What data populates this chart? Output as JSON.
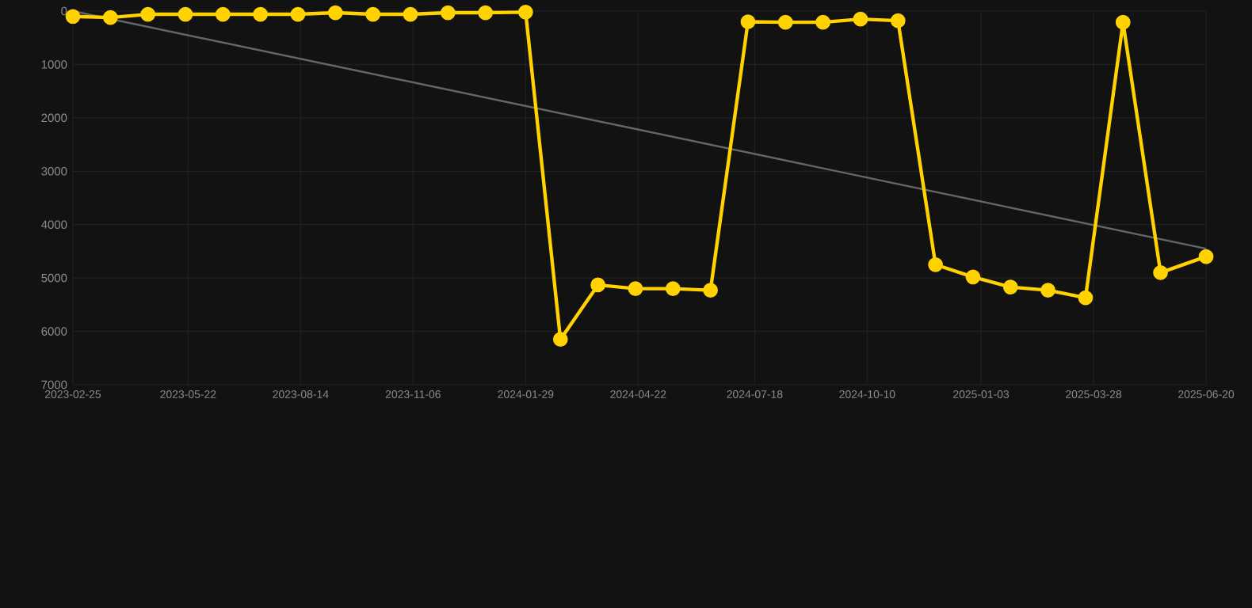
{
  "chart_data": {
    "type": "line",
    "x": [
      "2023-02-25",
      "2023-03-25",
      "2023-04-22",
      "2023-05-20",
      "2023-06-17",
      "2023-07-15",
      "2023-08-12",
      "2023-09-09",
      "2023-10-07",
      "2023-11-04",
      "2023-12-02",
      "2023-12-30",
      "2024-01-29",
      "2024-02-24",
      "2024-03-23",
      "2024-04-20",
      "2024-05-18",
      "2024-06-15",
      "2024-07-13",
      "2024-08-10",
      "2024-09-07",
      "2024-10-05",
      "2024-11-02",
      "2024-11-30",
      "2024-12-28",
      "2025-01-25",
      "2025-02-22",
      "2025-03-22",
      "2025-04-19",
      "2025-05-17",
      "2025-06-20"
    ],
    "series": [
      {
        "color": "#ffd200",
        "marker": "circle",
        "values": [
          100,
          120,
          60,
          60,
          60,
          60,
          60,
          30,
          60,
          60,
          30,
          30,
          20,
          6150,
          5130,
          5200,
          5200,
          5230,
          200,
          210,
          210,
          150,
          180,
          4750,
          4980,
          5170,
          5230,
          5370,
          210,
          4900,
          4600
        ]
      },
      {
        "type": "line",
        "color": "#666666",
        "marker": "none",
        "x": [
          "2023-02-25",
          "2025-06-20"
        ],
        "values": [
          0,
          4450
        ]
      }
    ],
    "xlim": [
      "2023-02-25",
      "2025-06-20"
    ],
    "ylim": [
      7000,
      0
    ],
    "xticks": [
      "2023-02-25",
      "2023-05-22",
      "2023-08-14",
      "2023-11-06",
      "2024-01-29",
      "2024-04-22",
      "2024-07-18",
      "2024-10-10",
      "2025-01-03",
      "2025-03-28",
      "2025-06-20"
    ],
    "yticks": [
      0,
      1000,
      2000,
      3000,
      4000,
      5000,
      6000,
      7000
    ],
    "grid": true
  }
}
